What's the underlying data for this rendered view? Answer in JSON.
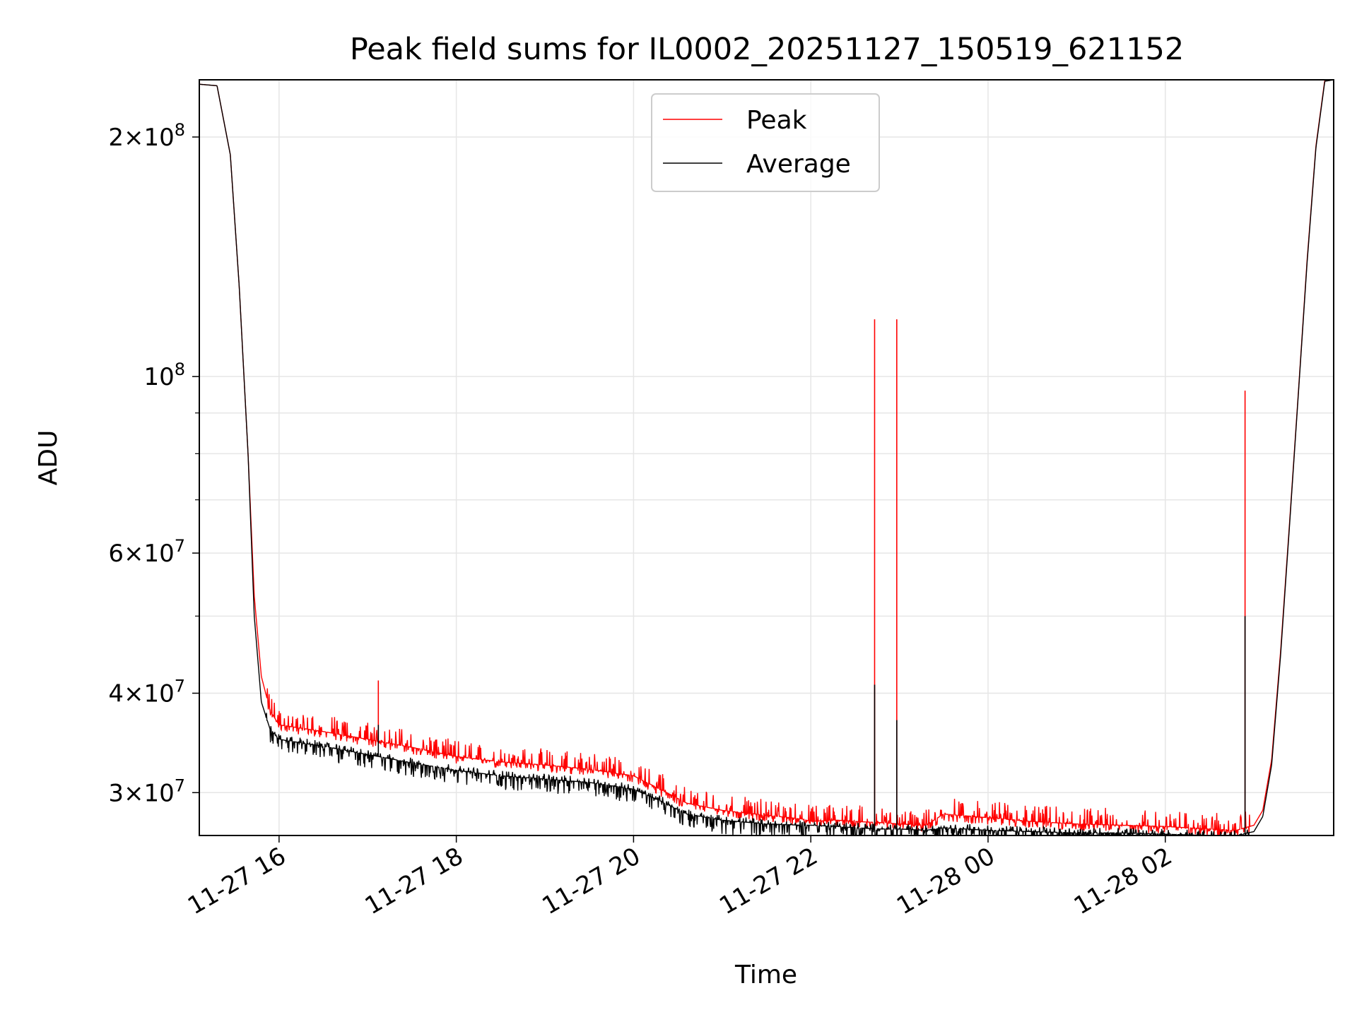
{
  "chart_data": {
    "type": "line",
    "title": "Peak field sums for IL0002_20251127_150519_621152",
    "xlabel": "Time",
    "ylabel": "ADU",
    "y_scale": "log",
    "ylim": [
      26500000,
      236000000
    ],
    "xlim_hours": [
      15.1,
      27.9
    ],
    "x_unit": "hours since 2025-11-27 00:00",
    "grid": true,
    "legend_position": "upper center",
    "x_ticks": [
      {
        "value": 16,
        "label": "11-27 16"
      },
      {
        "value": 18,
        "label": "11-27 18"
      },
      {
        "value": 20,
        "label": "11-27 20"
      },
      {
        "value": 22,
        "label": "11-27 22"
      },
      {
        "value": 24,
        "label": "11-28 00"
      },
      {
        "value": 26,
        "label": "11-28 02"
      }
    ],
    "y_ticks": [
      {
        "value": 30000000,
        "mantissa": "3",
        "exponent": "7"
      },
      {
        "value": 40000000,
        "mantissa": "4",
        "exponent": "7"
      },
      {
        "value": 60000000,
        "mantissa": "6",
        "exponent": "7"
      },
      {
        "value": 100000000,
        "mantissa": "",
        "exponent": "8"
      },
      {
        "value": 200000000,
        "mantissa": "2",
        "exponent": "8"
      }
    ],
    "y_minor_ticks": [
      50000000,
      70000000,
      80000000,
      90000000
    ],
    "series": [
      {
        "name": "Peak",
        "color": "#ff0000",
        "x": [
          15.1,
          15.3,
          15.45,
          15.55,
          15.65,
          15.72,
          15.8,
          15.9,
          16.0,
          16.5,
          17.0,
          17.5,
          18.0,
          18.5,
          19.0,
          19.5,
          20.0,
          20.3,
          20.6,
          21.0,
          21.5,
          21.9,
          22.0,
          22.3,
          22.5,
          22.8,
          23.0,
          23.3,
          23.5,
          24.0,
          24.5,
          25.0,
          25.5,
          26.0,
          26.5,
          26.8,
          27.0,
          27.1,
          27.2,
          27.3,
          27.4,
          27.5,
          27.6,
          27.7,
          27.8,
          27.9
        ],
        "y": [
          233000000,
          232000000,
          190000000,
          130000000,
          80000000,
          53000000,
          42000000,
          38000000,
          36500000,
          35800000,
          35000000,
          34200000,
          33300000,
          32800000,
          32500000,
          32100000,
          31500000,
          30300000,
          29100000,
          28500000,
          28100000,
          27800000,
          27600000,
          27700000,
          27600000,
          27500000,
          27400000,
          27300000,
          28200000,
          27900000,
          27600000,
          27400000,
          27300000,
          27200000,
          27000000,
          26900000,
          27300000,
          28500000,
          33000000,
          45000000,
          65000000,
          95000000,
          140000000,
          195000000,
          236000000,
          236000000
        ],
        "spikes": [
          {
            "x": 17.12,
            "y": 41500000
          },
          {
            "x": 17.7,
            "y": 35200000
          },
          {
            "x": 19.25,
            "y": 33800000
          },
          {
            "x": 22.72,
            "y": 118000000
          },
          {
            "x": 22.97,
            "y": 118000000
          },
          {
            "x": 26.9,
            "y": 96000000
          }
        ]
      },
      {
        "name": "Average",
        "color": "#000000",
        "x": [
          15.1,
          15.3,
          15.45,
          15.55,
          15.65,
          15.72,
          15.8,
          15.9,
          16.0,
          16.5,
          17.0,
          17.5,
          18.0,
          18.5,
          19.0,
          19.5,
          20.0,
          20.3,
          20.6,
          21.0,
          21.5,
          21.9,
          22.0,
          22.3,
          22.5,
          22.8,
          23.0,
          23.3,
          23.5,
          24.0,
          24.5,
          25.0,
          25.5,
          26.0,
          26.5,
          26.8,
          27.0,
          27.1,
          27.2,
          27.3,
          27.4,
          27.5,
          27.6,
          27.7,
          27.8,
          27.9
        ],
        "y": [
          233000000,
          232000000,
          190000000,
          130000000,
          80000000,
          50000000,
          39000000,
          36000000,
          35000000,
          34300000,
          33500000,
          32700000,
          32000000,
          31500000,
          31200000,
          30900000,
          30300000,
          29300000,
          28200000,
          27700000,
          27400000,
          27300000,
          27300000,
          27200000,
          27100000,
          27000000,
          27000000,
          26900000,
          27100000,
          26900000,
          26800000,
          26700000,
          26700000,
          26600000,
          26500000,
          26500000,
          26800000,
          28000000,
          32500000,
          44500000,
          64500000,
          94500000,
          139000000,
          194000000,
          235000000,
          236000000
        ],
        "spikes": [
          {
            "x": 17.12,
            "y": 36500000
          },
          {
            "x": 22.72,
            "y": 41000000
          },
          {
            "x": 22.97,
            "y": 37000000
          },
          {
            "x": 26.9,
            "y": 50000000
          }
        ]
      }
    ]
  }
}
